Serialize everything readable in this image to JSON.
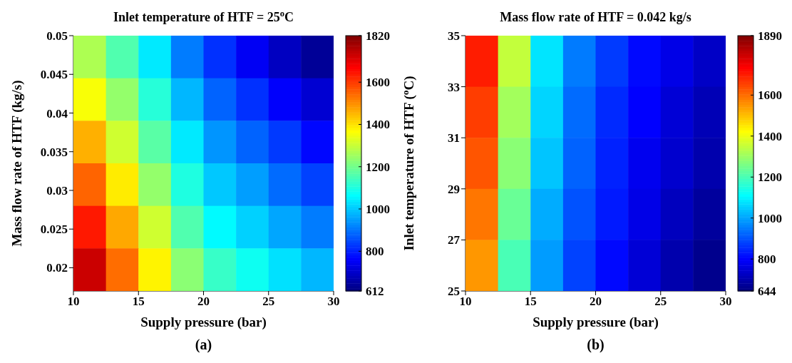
{
  "chart_data": [
    {
      "type": "heatmap",
      "title": "Inlet temperature of HTF = 25$^{o}$C",
      "xlabel": "Supply pressure (bar)",
      "ylabel": "Mass flow rate of HTF (kg/s)",
      "annotations": [
        "(a)"
      ],
      "xlim": [
        10,
        30
      ],
      "xticks": [
        10,
        15,
        20,
        25,
        30
      ],
      "ylim": [
        0.017,
        0.05
      ],
      "yticks": [
        0.02,
        0.025,
        0.03,
        0.035,
        0.04,
        0.045,
        0.05
      ],
      "cells": [
        [
          1270,
          1160,
          1040,
          910,
          820,
          750,
          690,
          640
        ],
        [
          1360,
          1240,
          1110,
          980,
          880,
          820,
          760,
          710
        ],
        [
          1460,
          1310,
          1170,
          1040,
          940,
          880,
          830,
          770
        ],
        [
          1550,
          1390,
          1240,
          1100,
          1000,
          950,
          890,
          840
        ],
        [
          1640,
          1470,
          1310,
          1160,
          1060,
          1010,
          960,
          910
        ],
        [
          1730,
          1540,
          1380,
          1230,
          1130,
          1080,
          1030,
          980
        ]
      ],
      "clim": [
        612,
        1820
      ],
      "cticks": [
        612,
        800,
        1000,
        1200,
        1400,
        1600,
        1820
      ]
    },
    {
      "type": "heatmap",
      "title": "Mass flow rate of HTF = 0.042 kg/s",
      "xlabel": "Supply pressure (bar)",
      "ylabel": "Inlet temperature of HTF ($^{o}$C)",
      "annotations": [
        "(b)"
      ],
      "xlim": [
        10,
        30
      ],
      "xticks": [
        10,
        15,
        20,
        25,
        30
      ],
      "ylim": [
        25,
        35
      ],
      "yticks": [
        25,
        27,
        29,
        31,
        33,
        35
      ],
      "cells": [
        [
          1700,
          1350,
          1080,
          950,
          870,
          810,
          770,
          730
        ],
        [
          1660,
          1310,
          1060,
          930,
          850,
          800,
          750,
          710
        ],
        [
          1630,
          1280,
          1040,
          920,
          840,
          780,
          740,
          700
        ],
        [
          1590,
          1240,
          1010,
          900,
          830,
          770,
          720,
          680
        ],
        [
          1550,
          1200,
          990,
          880,
          810,
          750,
          700,
          660
        ]
      ],
      "clim": [
        644,
        1890
      ],
      "cticks": [
        644,
        800,
        1000,
        1200,
        1400,
        1600,
        1890
      ]
    }
  ]
}
